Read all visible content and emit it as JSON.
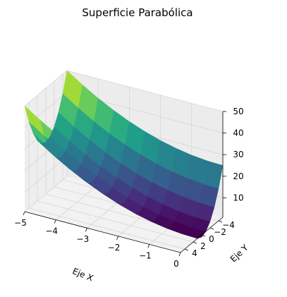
{
  "chart_data": {
    "type": "surface3d",
    "title": "Superficie Parabólica",
    "xlabel": "Eje X",
    "ylabel": "Eje Y",
    "zlabel": "",
    "function": "z = x^2 + y^2",
    "colormap": "viridis",
    "grid": true,
    "xlim": [
      -5,
      0
    ],
    "ylim": [
      -5,
      5
    ],
    "zlim": [
      1,
      50
    ],
    "x": [
      -5,
      -4.5,
      -4,
      -3.5,
      -3,
      -2.5,
      -2,
      -1.5,
      -1,
      -0.5,
      0
    ],
    "y": [
      -5,
      -4,
      -3,
      -2,
      -1,
      0,
      1,
      2,
      3,
      4,
      5
    ],
    "xticks": [
      "−5",
      "−4",
      "−3",
      "−2",
      "−1",
      "0"
    ],
    "yticks": [
      "−4",
      "−2",
      "0",
      "2",
      "4"
    ],
    "zticks": [
      "10",
      "20",
      "30",
      "40",
      "50"
    ]
  },
  "colors": {
    "pane": "#f2f2f2",
    "grid": "#d6d6d6",
    "axis": "#000000"
  }
}
